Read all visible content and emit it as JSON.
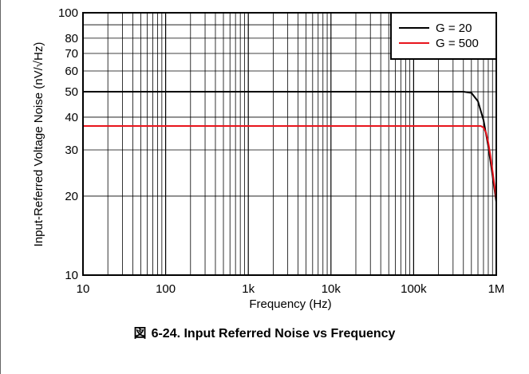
{
  "chart_data": {
    "type": "line",
    "title": "",
    "xlabel": "Frequency (Hz)",
    "ylabel": "Input-Referred Voltage Noise (nV/√Hz)",
    "xscale": "log",
    "yscale": "log",
    "xlim": [
      10,
      1000000
    ],
    "ylim": [
      10,
      100
    ],
    "x_ticks": [
      {
        "value": 10,
        "label": "10"
      },
      {
        "value": 100,
        "label": "100"
      },
      {
        "value": 1000,
        "label": "1k"
      },
      {
        "value": 10000,
        "label": "10k"
      },
      {
        "value": 100000,
        "label": "100k"
      },
      {
        "value": 1000000,
        "label": "1M"
      }
    ],
    "y_ticks": [
      {
        "value": 10,
        "label": "10"
      },
      {
        "value": 20,
        "label": "20"
      },
      {
        "value": 30,
        "label": "30"
      },
      {
        "value": 40,
        "label": "40"
      },
      {
        "value": 50,
        "label": "50"
      },
      {
        "value": 60,
        "label": "60"
      },
      {
        "value": 70,
        "label": "70"
      },
      {
        "value": 80,
        "label": "80"
      },
      {
        "value": 100,
        "label": "100"
      }
    ],
    "grid": true,
    "legend_position": "top-right",
    "series": [
      {
        "name": "G = 20",
        "color": "#000000",
        "x": [
          10,
          100000,
          400000,
          500000,
          600000,
          700000,
          800000,
          900000,
          1000000
        ],
        "y": [
          50,
          50,
          50,
          49.5,
          46,
          39,
          31,
          24,
          19
        ]
      },
      {
        "name": "G = 500",
        "color": "#e8141c",
        "x": [
          10,
          100000,
          650000,
          700000,
          750000,
          800000,
          850000,
          900000,
          950000,
          1000000
        ],
        "y": [
          37,
          37,
          37,
          36.5,
          35,
          32,
          28.5,
          25,
          22,
          19.5
        ]
      }
    ]
  },
  "caption": {
    "figure_mark": "図",
    "text": "6-24. Input Referred Noise vs Frequency"
  }
}
